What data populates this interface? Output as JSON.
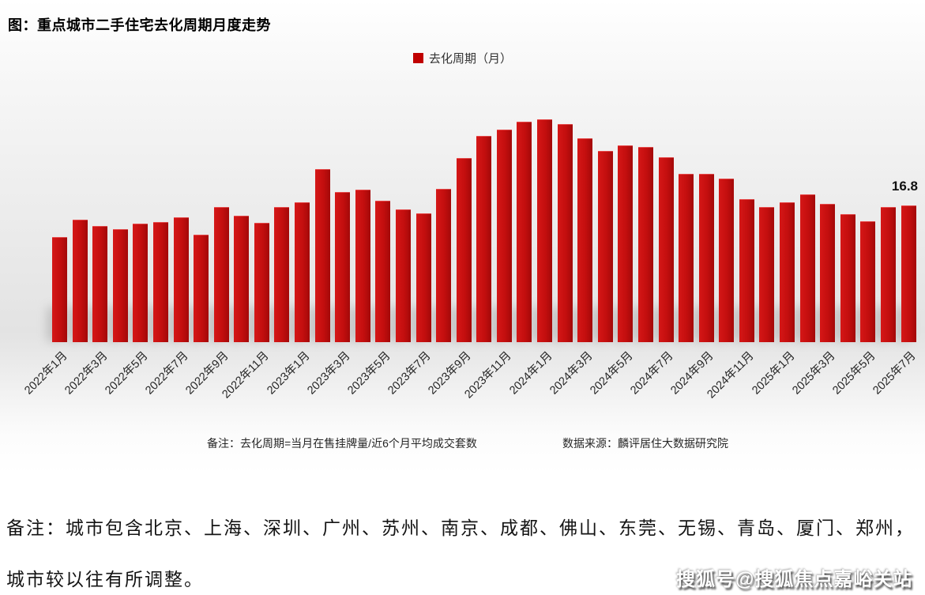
{
  "title": "图：重点城市二手住宅去化周期月度走势",
  "legend": {
    "label": "去化周期（月）",
    "color": "#c00000"
  },
  "annotation": {
    "last_value_label": "16.8"
  },
  "footnote": {
    "left": "备注：去化周期=当月在售挂牌量/近6个月平均成交套数",
    "right": "数据来源：麟评居住大数据研究院"
  },
  "bottom_note": {
    "line1": "备注：城市包含北京、上海、深圳、广州、苏州、南京、成都、佛山、东莞、无锡、青岛、厦门、郑州，",
    "line2": "城市较以往有所调整。"
  },
  "watermark": "搜狐号@搜狐焦点嘉峪关站",
  "chart_data": {
    "type": "bar",
    "title": "图：重点城市二手住宅去化周期月度走势",
    "series_name": "去化周期（月）",
    "bar_color": "#c00d0d",
    "categories": [
      "2022年1月",
      "2022年2月",
      "2022年3月",
      "2022年4月",
      "2022年5月",
      "2022年6月",
      "2022年7月",
      "2022年8月",
      "2022年9月",
      "2022年10月",
      "2022年11月",
      "2022年12月",
      "2023年1月",
      "2023年2月",
      "2023年3月",
      "2023年4月",
      "2023年5月",
      "2023年6月",
      "2023年7月",
      "2023年8月",
      "2023年9月",
      "2023年10月",
      "2023年11月",
      "2023年12月",
      "2024年1月",
      "2024年2月",
      "2024年3月",
      "2024年4月",
      "2024年5月",
      "2024年6月",
      "2024年7月",
      "2024年8月",
      "2024年9月",
      "2024年10月",
      "2024年11月",
      "2024年12月",
      "2025年1月",
      "2025年2月",
      "2025年3月",
      "2025年4月",
      "2025年5月",
      "2025年6月",
      "2025年7月"
    ],
    "values": [
      12.9,
      15.1,
      14.3,
      13.9,
      14.6,
      14.8,
      15.4,
      13.2,
      16.6,
      15.6,
      14.7,
      16.6,
      17.2,
      21.3,
      18.5,
      18.8,
      17.4,
      16.3,
      15.9,
      18.9,
      22.7,
      25.4,
      26.2,
      27.1,
      27.4,
      26.8,
      25.1,
      23.5,
      24.2,
      24.0,
      22.8,
      20.7,
      20.7,
      20.1,
      17.6,
      16.6,
      17.2,
      18.2,
      17.0,
      15.8,
      14.9,
      16.6,
      16.8
    ],
    "x_tick_labels": [
      "2022年1月",
      "2022年3月",
      "2022年5月",
      "2022年7月",
      "2022年9月",
      "2022年11月",
      "2023年1月",
      "2023年3月",
      "2023年5月",
      "2023年7月",
      "2023年9月",
      "2023年11月",
      "2024年1月",
      "2024年3月",
      "2024年5月",
      "2024年7月",
      "2024年9月",
      "2024年11月",
      "2025年1月",
      "2025年3月",
      "2025年5月",
      "2025年7月"
    ],
    "tick_every_n_months": 2,
    "ylim": [
      0,
      30
    ],
    "grid": false,
    "legend_position": "top-center",
    "data_label": {
      "category": "2025年7月",
      "value": 16.8
    }
  }
}
